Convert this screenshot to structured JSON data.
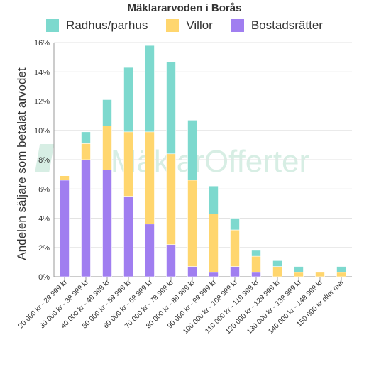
{
  "chart_data": {
    "type": "bar",
    "stacked": true,
    "title": "Mäklararvoden i Borås",
    "ylabel": "Andelen säljare som betalat arvodet",
    "xlabel": "",
    "ylim": [
      0,
      16
    ],
    "y_unit": "%",
    "yticks": [
      0,
      2,
      4,
      6,
      8,
      10,
      12,
      14,
      16
    ],
    "grid": true,
    "legend_position": "top",
    "watermark": "MäklarOfferter",
    "categories": [
      "20 000 kr - 29 999 kr",
      "30 000 kr - 39 999 kr",
      "40 000 kr - 49 999 kr",
      "50 000 kr - 59 999 kr",
      "60 000 kr - 69 999 kr",
      "70 000 kr - 79 999 kr",
      "80 000 kr - 89 999 kr",
      "90 000 kr - 99 999 kr",
      "100 000 kr - 109 999 kr",
      "110 000 kr - 119 999 kr",
      "120 000 kr - 129 999 kr",
      "130 000 kr - 139 999 kr",
      "140 000 kr - 149 999 kr",
      "150 000 kr eller mer"
    ],
    "series": [
      {
        "name": "Bostadsrätter",
        "color": "#a07ef0",
        "values": [
          6.6,
          8.0,
          7.3,
          5.5,
          3.6,
          2.2,
          0.7,
          0.3,
          0.7,
          0.3,
          0.0,
          0.0,
          0.0,
          0.0
        ]
      },
      {
        "name": "Villor",
        "color": "#ffd66e",
        "values": [
          0.3,
          1.1,
          3.0,
          4.4,
          6.3,
          6.2,
          5.9,
          4.0,
          2.5,
          1.1,
          0.7,
          0.3,
          0.3,
          0.3
        ]
      },
      {
        "name": "Radhus/parhus",
        "color": "#7dd9ce",
        "values": [
          0.0,
          0.8,
          1.8,
          4.4,
          5.9,
          6.3,
          4.1,
          1.9,
          0.8,
          0.4,
          0.4,
          0.4,
          0.0,
          0.4
        ]
      }
    ],
    "legend_order": [
      "Radhus/parhus",
      "Villor",
      "Bostadsrätter"
    ]
  }
}
